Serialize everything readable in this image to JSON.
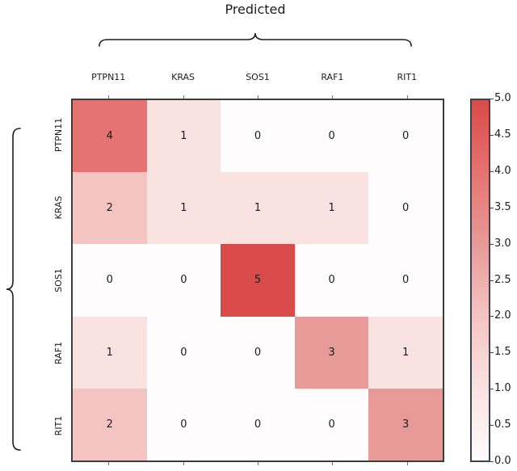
{
  "chart_data": {
    "type": "heatmap",
    "title": "Predicted",
    "x_axis_group_label": "Predicted",
    "x_categories": [
      "PTPN11",
      "KRAS",
      "SOS1",
      "RAF1",
      "RIT1"
    ],
    "y_categories": [
      "PTPN11",
      "KRAS",
      "SOS1",
      "RAF1",
      "RIT1"
    ],
    "values": [
      [
        4,
        1,
        0,
        0,
        0
      ],
      [
        2,
        1,
        1,
        1,
        0
      ],
      [
        0,
        0,
        5,
        0,
        0
      ],
      [
        1,
        0,
        0,
        3,
        1
      ],
      [
        2,
        0,
        0,
        0,
        3
      ]
    ],
    "colorbar": {
      "min": 0.0,
      "max": 5.0,
      "tick_labels": [
        "5.0",
        "4.5",
        "4.0",
        "3.5",
        "3.0",
        "2.5",
        "2.0",
        "1.5",
        "1.0",
        "0.5",
        "0.0"
      ]
    },
    "colormap": "white-to-red",
    "legend_position": "right-colorbar",
    "grid": false
  },
  "colors": {
    "value_scale": {
      "0": "#fefcfc",
      "1": "#fae2e1",
      "2": "#f4c4c3",
      "3": "#e79a98",
      "4": "#e57371",
      "5": "#d84b48"
    },
    "matrix_border": "#3d3d3d",
    "colorbar_border": "#36454f",
    "colorbar_top": "#d84b48",
    "colorbar_bottom": "#ffffff",
    "text": "#1c1c1c",
    "brace": "#1c1c1c"
  }
}
